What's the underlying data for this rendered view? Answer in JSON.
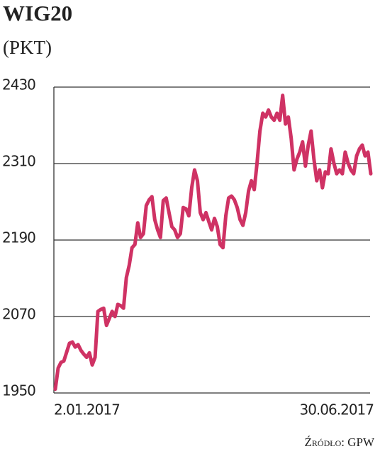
{
  "chart_data": {
    "type": "line",
    "title": "WIG20",
    "subtitle": "(PKT)",
    "source": "Źródło: GPW",
    "categories": [
      "2.01.2017",
      null,
      null,
      null,
      null,
      null,
      null,
      null,
      null,
      null,
      null,
      null,
      null,
      null,
      null,
      null,
      null,
      null,
      null,
      null,
      null,
      null,
      null,
      null,
      null,
      null,
      null,
      null,
      null,
      null,
      null,
      null,
      null,
      null,
      null,
      null,
      null,
      null,
      null,
      null,
      null,
      null,
      null,
      null,
      null,
      null,
      null,
      null,
      null,
      null,
      null,
      null,
      null,
      null,
      null,
      null,
      null,
      null,
      null,
      null,
      null,
      null,
      null,
      null,
      null,
      null,
      null,
      null,
      null,
      null,
      null,
      null,
      null,
      null,
      null,
      null,
      null,
      null,
      null,
      null,
      null,
      null,
      null,
      null,
      null,
      null,
      null,
      null,
      null,
      null,
      null,
      null,
      null,
      null,
      null,
      null,
      null,
      null,
      null,
      null,
      null,
      null,
      null,
      null,
      null,
      null,
      null,
      null,
      null,
      null,
      null,
      "30.06.2017"
    ],
    "values": [
      1956,
      1989,
      1998,
      2000,
      2014,
      2028,
      2030,
      2022,
      2026,
      2017,
      2011,
      2006,
      2013,
      1994,
      2006,
      2078,
      2081,
      2083,
      2056,
      2067,
      2078,
      2070,
      2089,
      2087,
      2083,
      2131,
      2150,
      2178,
      2183,
      2217,
      2194,
      2200,
      2244,
      2253,
      2258,
      2222,
      2206,
      2194,
      2252,
      2256,
      2233,
      2211,
      2206,
      2194,
      2200,
      2241,
      2239,
      2228,
      2272,
      2300,
      2283,
      2233,
      2222,
      2233,
      2219,
      2206,
      2224,
      2211,
      2183,
      2178,
      2228,
      2256,
      2259,
      2253,
      2241,
      2222,
      2213,
      2233,
      2267,
      2283,
      2269,
      2311,
      2361,
      2389,
      2383,
      2394,
      2383,
      2378,
      2389,
      2378,
      2417,
      2372,
      2383,
      2350,
      2300,
      2317,
      2328,
      2344,
      2306,
      2339,
      2361,
      2317,
      2283,
      2300,
      2272,
      2297,
      2294,
      2333,
      2311,
      2294,
      2300,
      2294,
      2328,
      2311,
      2300,
      2294,
      2322,
      2333,
      2339,
      2322,
      2328,
      2294
    ],
    "color": "#cf3264",
    "ylim": [
      1950,
      2430
    ],
    "yticks": [
      1950,
      2070,
      2190,
      2310,
      2430
    ],
    "grid": true
  }
}
